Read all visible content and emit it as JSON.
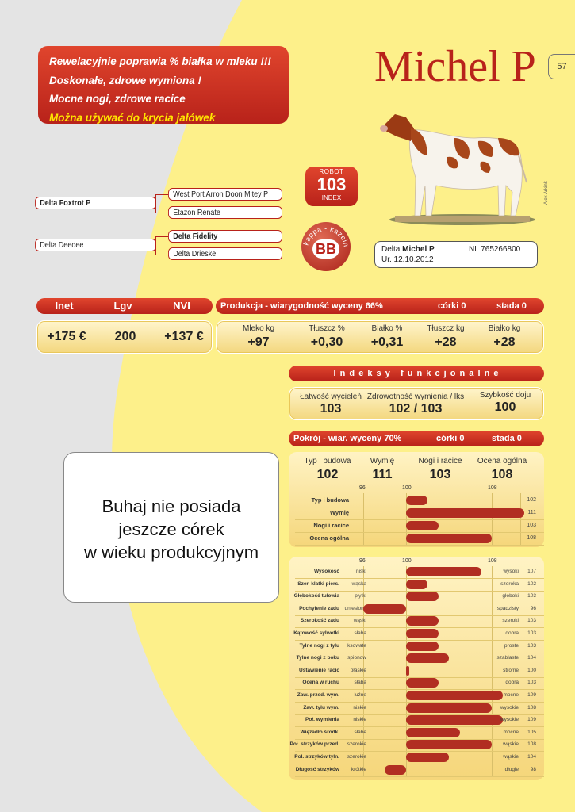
{
  "promo": {
    "line1": "Rewelacyjnie poprawia % białka w mleku !!!",
    "line2": "Doskonałe, zdrowe wymiona !",
    "line3": "Mocne nogi, zdrowe racice",
    "line4": "Można używać do krycia jałówek"
  },
  "title": "Michel P",
  "page_number": "57",
  "photo_credit": "Alex Arkink",
  "pedigree": {
    "sire": "Delta Foxtrot P",
    "sire_sire": "West Port Arron Doon Mitey P",
    "sire_dam": "Etazon Renate",
    "dam": "Delta Deedee",
    "dam_sire": "Delta Fidelity",
    "dam_dam": "Delta Drieske"
  },
  "robot": {
    "top": "ROBOT",
    "value": "103",
    "bottom": "INDEX"
  },
  "kappa": {
    "label": "kappa - kazeina",
    "value": "BB"
  },
  "id": {
    "name_prefix": "Delta ",
    "name": "Michel P",
    "number": "NL 765266800",
    "born": "Ur. 12.10.2012"
  },
  "indices": {
    "headers": [
      "Inet",
      "Lgv",
      "NVI"
    ],
    "values": [
      "+175 €",
      "200",
      "+137 €"
    ]
  },
  "production": {
    "header": "Produkcja - wiarygodność wyceny 66%",
    "daughters": "córki 0",
    "herds": "stada 0",
    "labels": [
      "Mleko kg",
      "Tłuszcz %",
      "Białko %",
      "Tłuszcz kg",
      "Białko kg"
    ],
    "values": [
      "+97",
      "+0,30",
      "+0,31",
      "+28",
      "+28"
    ]
  },
  "functional": {
    "header": "I n d e k s y   f u n k c j o n a l n e",
    "labels": [
      "Łatwość wycieleń",
      "Zdrowotność wymienia / lks",
      "Szybkość doju"
    ],
    "values": [
      "103",
      "102 / 103",
      "100"
    ]
  },
  "conformation": {
    "header": "Pokrój - wiar. wyceny 70%",
    "daughters": "córki 0",
    "herds": "stada 0",
    "labels": [
      "Typ i budowa",
      "Wymię",
      "Nogi i racice",
      "Ocena ogólna"
    ],
    "values": [
      "102",
      "111",
      "103",
      "108"
    ],
    "scale": [
      "96",
      "100",
      "108"
    ],
    "bars": [
      {
        "name": "Typ i budowa",
        "value": 102
      },
      {
        "name": "Wymię",
        "value": 111
      },
      {
        "name": "Nogi i racice",
        "value": 103
      },
      {
        "name": "Ocena ogólna",
        "value": 108
      }
    ]
  },
  "message": {
    "line1": "Buhaj nie posiada",
    "line2": "jeszcze córek",
    "line3": "w wieku produkcyjnym"
  },
  "linear": {
    "scale": [
      "96",
      "100",
      "108"
    ],
    "traits": [
      {
        "name": "Wysokość",
        "low": "niski",
        "high": "wysoki",
        "value": 107
      },
      {
        "name": "Szer. klatki piers.",
        "low": "wąska",
        "high": "szeroka",
        "value": 102
      },
      {
        "name": "Głębokość tułowia",
        "low": "płytki",
        "high": "głęboki",
        "value": 103
      },
      {
        "name": "Pochylenie zadu",
        "low": "uniesiony",
        "high": "spadzisty",
        "value": 96
      },
      {
        "name": "Szerokość zadu",
        "low": "wąski",
        "high": "szeroki",
        "value": 103
      },
      {
        "name": "Kątowość sylwetki",
        "low": "słaba",
        "high": "dobra",
        "value": 103
      },
      {
        "name": "Tylne nogi z tyłu",
        "low": "iksowate",
        "high": "proste",
        "value": 103
      },
      {
        "name": "Tylne nogi z boku",
        "low": "spionow",
        "high": "szablaste",
        "value": 104
      },
      {
        "name": "Ustawienie racic",
        "low": "płaskie",
        "high": "strome",
        "value": 100
      },
      {
        "name": "Ocena w ruchu",
        "low": "słaba",
        "high": "dobra",
        "value": 103
      },
      {
        "name": "Zaw. przed. wym.",
        "low": "luźne",
        "high": "mocne",
        "value": 109
      },
      {
        "name": "Zaw. tyłu wym.",
        "low": "niskie",
        "high": "wysokie",
        "value": 108
      },
      {
        "name": "Poł. wymienia",
        "low": "niskie",
        "high": "wysokie",
        "value": 109
      },
      {
        "name": "Więzadło środk.",
        "low": "słabe",
        "high": "mocne",
        "value": 105
      },
      {
        "name": "Poł. strzyków przed.",
        "low": "szerokie",
        "high": "wąskie",
        "value": 108
      },
      {
        "name": "Poł. strzyków tyln.",
        "low": "szerokie",
        "high": "wąskie",
        "value": 104
      },
      {
        "name": "Długość strzyków",
        "low": "krótkie",
        "high": "długie",
        "value": 98
      }
    ]
  },
  "colors": {
    "accent": "#b8221a",
    "page": "#fdf08a",
    "grey": "#e4e4e4"
  }
}
